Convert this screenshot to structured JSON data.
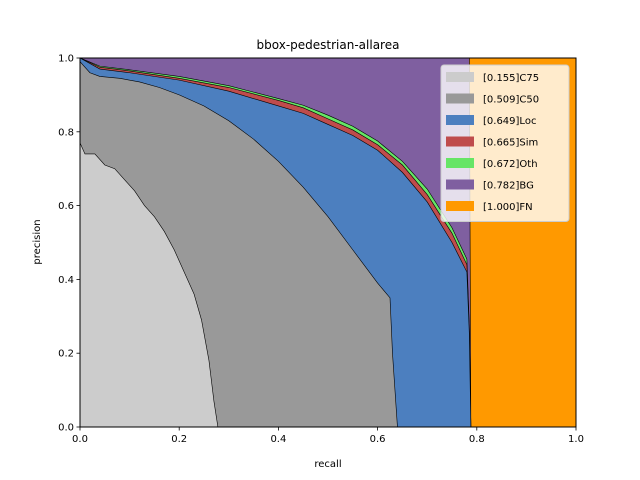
{
  "chart_data": {
    "type": "area",
    "title": "bbox-pedestrian-allarea",
    "xlabel": "recall",
    "ylabel": "precision",
    "xlim": [
      0,
      1
    ],
    "ylim": [
      0,
      1
    ],
    "xticks": [
      "0.0",
      "0.2",
      "0.4",
      "0.6",
      "0.8",
      "1.0"
    ],
    "yticks": [
      "0.0",
      "0.2",
      "0.4",
      "0.6",
      "0.8",
      "1.0"
    ],
    "grid": false,
    "legend_position": "top-right",
    "series": [
      {
        "name": "[0.155]C75",
        "color": "#cccccc",
        "points": [
          [
            0,
            0.77
          ],
          [
            0.01,
            0.74
          ],
          [
            0.03,
            0.74
          ],
          [
            0.05,
            0.71
          ],
          [
            0.07,
            0.7
          ],
          [
            0.09,
            0.67
          ],
          [
            0.11,
            0.64
          ],
          [
            0.13,
            0.6
          ],
          [
            0.15,
            0.57
          ],
          [
            0.17,
            0.53
          ],
          [
            0.19,
            0.48
          ],
          [
            0.21,
            0.42
          ],
          [
            0.23,
            0.36
          ],
          [
            0.245,
            0.29
          ],
          [
            0.26,
            0.18
          ],
          [
            0.27,
            0.07
          ],
          [
            0.278,
            0.0
          ]
        ]
      },
      {
        "name": "[0.509]C50",
        "color": "#999999",
        "points": [
          [
            0,
            0.99
          ],
          [
            0.02,
            0.96
          ],
          [
            0.04,
            0.95
          ],
          [
            0.08,
            0.945
          ],
          [
            0.12,
            0.935
          ],
          [
            0.16,
            0.92
          ],
          [
            0.2,
            0.9
          ],
          [
            0.25,
            0.87
          ],
          [
            0.3,
            0.83
          ],
          [
            0.35,
            0.78
          ],
          [
            0.4,
            0.72
          ],
          [
            0.45,
            0.65
          ],
          [
            0.5,
            0.57
          ],
          [
            0.55,
            0.48
          ],
          [
            0.6,
            0.39
          ],
          [
            0.625,
            0.35
          ],
          [
            0.63,
            0.2
          ],
          [
            0.64,
            0.0
          ]
        ]
      },
      {
        "name": "[0.649]Loc",
        "color": "#4c7fbf",
        "points": [
          [
            0,
            1.0
          ],
          [
            0.04,
            0.97
          ],
          [
            0.1,
            0.96
          ],
          [
            0.2,
            0.94
          ],
          [
            0.3,
            0.91
          ],
          [
            0.4,
            0.87
          ],
          [
            0.45,
            0.85
          ],
          [
            0.5,
            0.82
          ],
          [
            0.55,
            0.79
          ],
          [
            0.6,
            0.75
          ],
          [
            0.65,
            0.69
          ],
          [
            0.7,
            0.61
          ],
          [
            0.75,
            0.5
          ],
          [
            0.78,
            0.42
          ],
          [
            0.785,
            0.25
          ],
          [
            0.788,
            0.0
          ]
        ]
      },
      {
        "name": "[0.665]Sim",
        "color": "#bf4c4c",
        "points": [
          [
            0,
            1.0
          ],
          [
            0.04,
            0.975
          ],
          [
            0.1,
            0.965
          ],
          [
            0.2,
            0.945
          ],
          [
            0.3,
            0.92
          ],
          [
            0.4,
            0.885
          ],
          [
            0.45,
            0.865
          ],
          [
            0.5,
            0.835
          ],
          [
            0.55,
            0.805
          ],
          [
            0.6,
            0.765
          ],
          [
            0.65,
            0.71
          ],
          [
            0.7,
            0.63
          ],
          [
            0.75,
            0.525
          ],
          [
            0.78,
            0.44
          ],
          [
            0.785,
            0.26
          ],
          [
            0.788,
            0.0
          ]
        ]
      },
      {
        "name": "[0.672]Oth",
        "color": "#66e566",
        "points": [
          [
            0,
            1.0
          ],
          [
            0.04,
            0.978
          ],
          [
            0.1,
            0.968
          ],
          [
            0.2,
            0.95
          ],
          [
            0.3,
            0.925
          ],
          [
            0.4,
            0.89
          ],
          [
            0.45,
            0.872
          ],
          [
            0.5,
            0.845
          ],
          [
            0.55,
            0.815
          ],
          [
            0.6,
            0.775
          ],
          [
            0.65,
            0.72
          ],
          [
            0.7,
            0.645
          ],
          [
            0.75,
            0.54
          ],
          [
            0.78,
            0.455
          ],
          [
            0.785,
            0.27
          ],
          [
            0.788,
            0.0
          ]
        ]
      },
      {
        "name": "[0.782]BG",
        "color": "#7f5fa0",
        "points": [
          [
            0,
            1.0
          ],
          [
            0.785,
            1.0
          ],
          [
            0.788,
            0.0
          ]
        ]
      },
      {
        "name": "[1.000]FN",
        "color": "#ff9900",
        "points": [
          [
            0,
            1.0
          ],
          [
            1.0,
            1.0
          ],
          [
            1.0,
            0.0
          ]
        ]
      }
    ]
  }
}
